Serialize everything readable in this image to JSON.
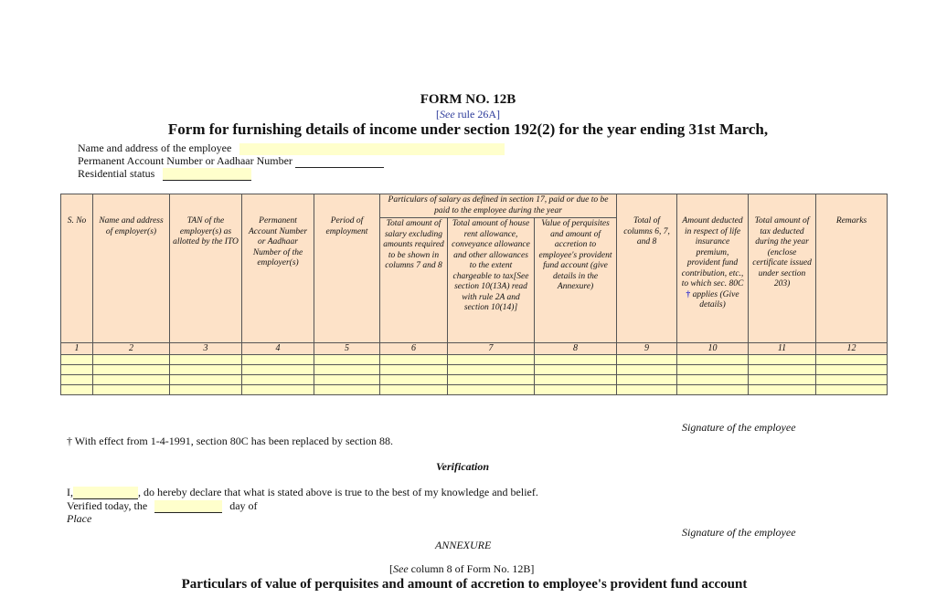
{
  "header": {
    "form_no": "FORM NO. 12B",
    "rule_see": "See",
    "rule_text": "rule 26A]",
    "rule_open": "[",
    "subtitle": "Form for furnishing details of income under section 192(2) for the year ending 31st March,"
  },
  "employee": {
    "name_label": "Name and address of the employee",
    "name_value": "",
    "pan_label": "Permanent Account Number or Aadhaar Number",
    "pan_value": "",
    "residential_label": "Residential status",
    "residential_value": ""
  },
  "table": {
    "group_header": "Particulars of salary as defined in section 17, paid or due to be paid to the employee during the year",
    "columns": [
      "S. No",
      "Name and address of employer(s)",
      "TAN of the employer(s) as allotted by the ITO",
      "Permanent Account Number or Aadhaar Number of the employer(s)",
      "Period of employment",
      "Total amount of salary excluding amounts required to be shown in columns 7 and 8",
      "Total amount of house rent allowance, conveyance allowance and other allowances to the extent chargeable to tax[See section 10(13A) read with rule 2A and section 10(14)]",
      "Value of perquisites and amount of accretion to employee's provident fund account (give details in the Annexure)",
      "Total of columns 6, 7, and 8",
      "Amount deducted in respect of life insurance premium, provident fund contribution, etc., to which sec. 80C",
      "Total amount of tax deducted during the year (enclose certificate issued under section 203)",
      "Remarks"
    ],
    "col10_dagger": "†",
    "col10_suffix": "applies (Give details)",
    "numbers": [
      "1",
      "2",
      "3",
      "4",
      "5",
      "6",
      "7",
      "8",
      "9",
      "10",
      "11",
      "12"
    ],
    "rows": [
      [
        "",
        "",
        "",
        "",
        "",
        "",
        "",
        "",
        "",
        "",
        "",
        ""
      ],
      [
        "",
        "",
        "",
        "",
        "",
        "",
        "",
        "",
        "",
        "",
        "",
        ""
      ],
      [
        "",
        "",
        "",
        "",
        "",
        "",
        "",
        "",
        "",
        "",
        "",
        ""
      ],
      [
        "",
        "",
        "",
        "",
        "",
        "",
        "",
        "",
        "",
        "",
        "",
        ""
      ]
    ]
  },
  "signature1": "Signature of the employee",
  "footnote": "† With effect from 1-4-1991, section 80C has been replaced by section 88.",
  "verification": {
    "heading": "Verification",
    "declare_prefix": "I,",
    "declare_name": "",
    "declare_text": ", do hereby declare that what is stated above is true to the best of my knowledge and belief.",
    "verified_prefix": "Verified today, the",
    "verified_day": "",
    "verified_suffix": "day of",
    "place_label": "Place"
  },
  "signature2": "Signature of the employee",
  "annexure": {
    "heading": "ANNEXURE",
    "see_open": "[",
    "see_word": "See",
    "see_text": "column 8 of Form No. 12B]",
    "title": "Particulars of value of perquisites and amount of accretion to employee's provident fund account"
  },
  "colors": {
    "header_fill": "#fde2c8",
    "input_fill": "#ffffc6",
    "link_blue": "#2b3a9a"
  }
}
